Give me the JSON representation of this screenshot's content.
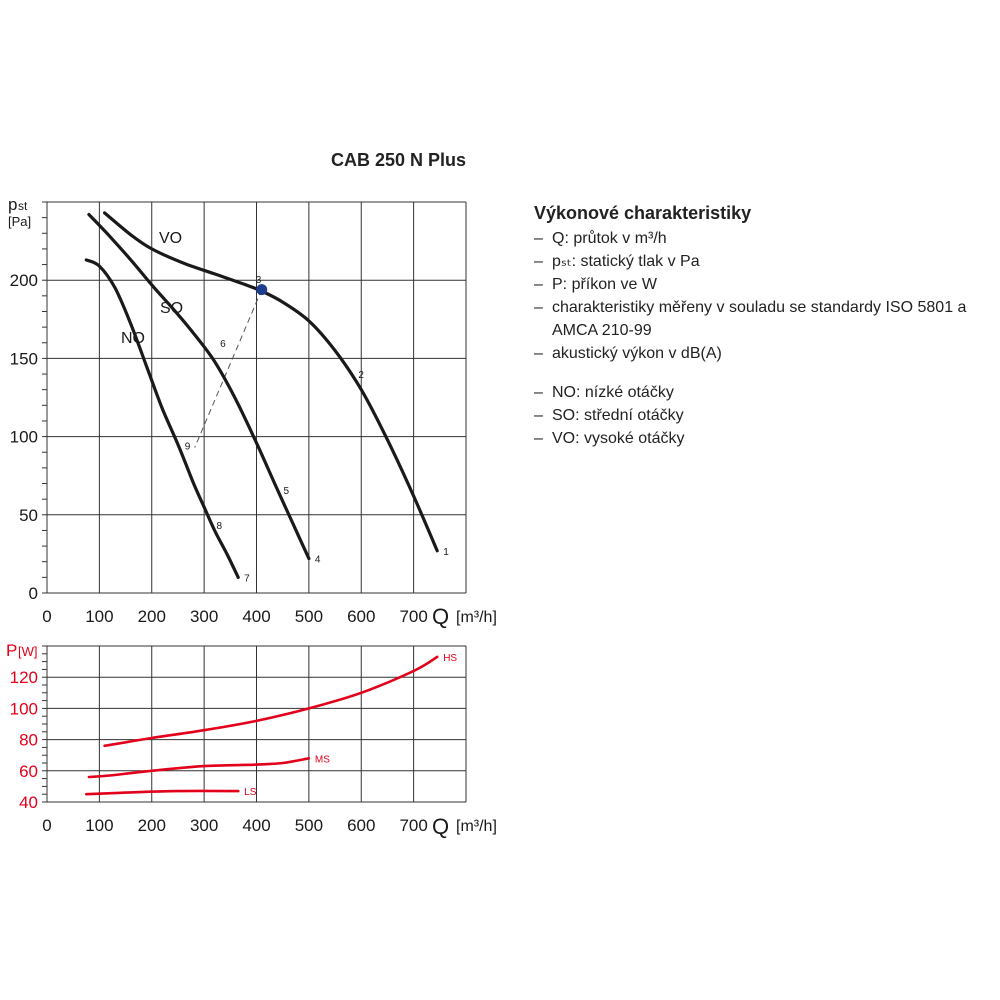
{
  "title": "CAB 250 N Plus",
  "legend": {
    "heading": "Výkonové charakteristiky",
    "dash": "–",
    "items": [
      "Q: průtok v m³/h",
      "pₛₜ: statický tlak v Pa",
      "P: příkon ve W",
      "charakteristiky měřeny v souladu se standardy ISO 5801 a AMCA 210-99",
      "akustický výkon v dB(A)"
    ],
    "speed_items": [
      "NO: nízké otáčky",
      "SO: střední otáčky",
      "VO: vysoké otáčky"
    ]
  },
  "chart_data": [
    {
      "type": "line",
      "ylabel_main": "p",
      "ylabel_sub": "st",
      "yunit": "[Pa]",
      "xlabel_main": "Q",
      "xunit": "[m³/h]",
      "xlim": [
        0,
        800
      ],
      "ylim": [
        0,
        250
      ],
      "xticks": [
        0,
        100,
        200,
        300,
        400,
        500,
        600,
        700
      ],
      "yticks": [
        0,
        50,
        100,
        150,
        200
      ],
      "grid": true,
      "line_color": "#1a1a1a",
      "series": [
        {
          "name": "VO",
          "x": [
            110,
            160,
            200,
            260,
            320,
            380,
            410,
            450,
            500,
            550,
            600,
            650,
            700,
            745
          ],
          "y": [
            243,
            229,
            220,
            211,
            204,
            197,
            193,
            186,
            174,
            155,
            130,
            98,
            62,
            27
          ]
        },
        {
          "name": "SO",
          "x": [
            80,
            120,
            160,
            200,
            240,
            280,
            320,
            360,
            400,
            440,
            470,
            500
          ],
          "y": [
            242,
            228,
            213,
            197,
            182,
            166,
            148,
            124,
            96,
            66,
            44,
            22
          ]
        },
        {
          "name": "NO",
          "x": [
            75,
            100,
            130,
            160,
            190,
            220,
            250,
            280,
            300,
            320,
            345,
            365
          ],
          "y": [
            213,
            209,
            195,
            172,
            145,
            118,
            95,
            70,
            55,
            40,
            24,
            10
          ]
        }
      ],
      "operating_points": [
        {
          "label": "1",
          "x": 745,
          "y": 27
        },
        {
          "label": "2",
          "x": 583,
          "y": 140
        },
        {
          "label": "3",
          "x": 410,
          "y": 193
        },
        {
          "label": "4",
          "x": 500,
          "y": 22
        },
        {
          "label": "5",
          "x": 440,
          "y": 66
        },
        {
          "label": "6",
          "x": 342,
          "y": 156
        },
        {
          "label": "7",
          "x": 365,
          "y": 10
        },
        {
          "label": "8",
          "x": 318,
          "y": 41
        },
        {
          "label": "9",
          "x": 282,
          "y": 93
        }
      ],
      "marker": {
        "x": 410,
        "y": 194,
        "color": "#1f3c8f"
      },
      "dashed_line": {
        "x": [
          410,
          282
        ],
        "y": [
          194,
          93
        ]
      }
    },
    {
      "type": "line",
      "ylabel": "P[W]",
      "xlabel_main": "Q",
      "xunit": "[m³/h]",
      "xlim": [
        0,
        800
      ],
      "ylim": [
        40,
        140
      ],
      "xticks": [
        0,
        100,
        200,
        300,
        400,
        500,
        600,
        700
      ],
      "yticks": [
        40,
        60,
        80,
        100,
        120
      ],
      "grid": true,
      "color": "#e2001a",
      "series": [
        {
          "name": "HS",
          "x": [
            110,
            200,
            300,
            400,
            500,
            600,
            700,
            745
          ],
          "y": [
            76,
            81,
            86,
            92,
            100,
            110,
            124,
            133
          ]
        },
        {
          "name": "MS",
          "x": [
            80,
            120,
            200,
            300,
            400,
            450,
            500
          ],
          "y": [
            56,
            57,
            60,
            63,
            64,
            65,
            68
          ]
        },
        {
          "name": "LS",
          "x": [
            75,
            150,
            250,
            365
          ],
          "y": [
            45,
            46,
            47,
            47
          ]
        }
      ]
    }
  ]
}
